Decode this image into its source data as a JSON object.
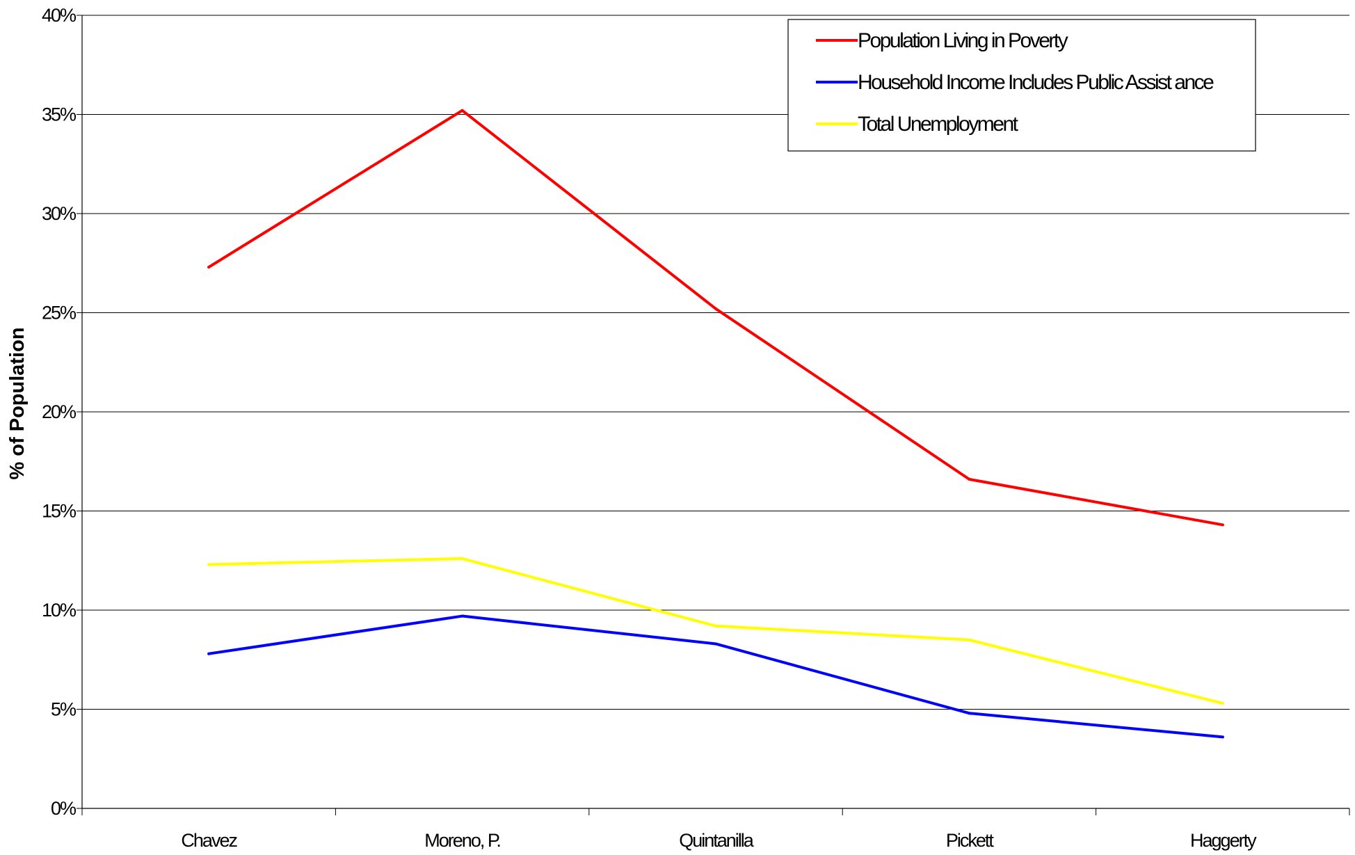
{
  "chart_data": {
    "type": "line",
    "title": "",
    "xlabel": "",
    "ylabel": "% of Population",
    "categories": [
      "Chavez",
      "Moreno, P.",
      "Quintanilla",
      "Pickett",
      "Haggerty"
    ],
    "y_tick_labels": [
      "0%",
      "5%",
      "10%",
      "15%",
      "20%",
      "25%",
      "30%",
      "35%",
      "40%"
    ],
    "ylim": [
      0,
      40
    ],
    "y_unit": "%",
    "grid": "horizontal",
    "legend_position": "top-right",
    "series": [
      {
        "name": "Population Living in Poverty",
        "color": "#ff0000",
        "values": [
          27.3,
          35.2,
          25.2,
          16.6,
          14.3
        ]
      },
      {
        "name": "Household Income Includes Public Assist ance",
        "color": "#0000ff",
        "values": [
          7.8,
          9.7,
          8.3,
          4.8,
          3.6
        ]
      },
      {
        "name": "Total Unemployment",
        "color": "#ffff00",
        "values": [
          12.3,
          12.6,
          9.2,
          8.5,
          5.3
        ]
      }
    ]
  }
}
